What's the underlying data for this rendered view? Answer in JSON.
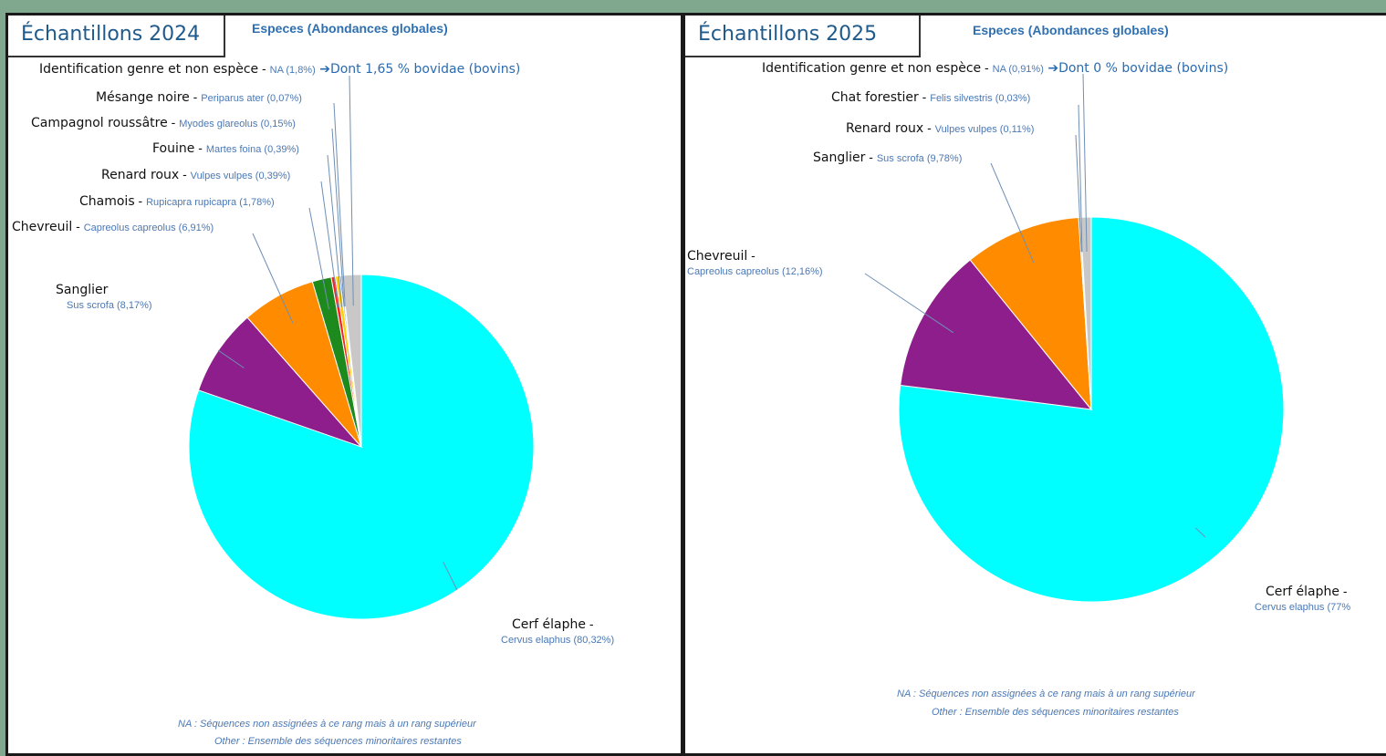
{
  "chart_data": [
    {
      "type": "pie",
      "panel": "Échantillons 2024",
      "title": "Especes (Abondances globales)",
      "slices": [
        {
          "common": "Cerf élaphe",
          "sci": "Cervus elaphus (80,32%)",
          "value": 80.32,
          "color": "#00ffff"
        },
        {
          "common": "Sanglier",
          "sci": "Sus scrofa (8,17%)",
          "value": 8.17,
          "color": "#8e1e8c"
        },
        {
          "common": "Chevreuil",
          "sci": "Capreolus capreolus (6,91%)",
          "value": 6.91,
          "color": "#ff8c00"
        },
        {
          "common": "Chamois",
          "sci": "Rupicapra rupicapra (1,78%)",
          "value": 1.78,
          "color": "#1e8a1e"
        },
        {
          "common": "Renard roux",
          "sci": "Vulpes vulpes (0,39%)",
          "value": 0.39,
          "color": "#ff2020"
        },
        {
          "common": "Fouine",
          "sci": "Martes foina (0,39%)",
          "value": 0.39,
          "color": "#ffd000"
        },
        {
          "common": "Campagnol roussâtre",
          "sci": "Myodes glareolus (0,15%)",
          "value": 0.15,
          "color": "#3a7bd5"
        },
        {
          "common": "Mésange noire",
          "sci": "Periparus ater (0,07%)",
          "value": 0.07,
          "color": "#b05ac0"
        },
        {
          "common": "Identification genre et non espèce",
          "sci": "NA (1,8%)",
          "value": 1.8,
          "color": "#c8c8c8"
        }
      ],
      "note": "Dont 1,65 % bovidae (bovins)",
      "footnote_1": "NA : Séquences non assignées à ce rang mais à un rang supérieur",
      "footnote_2": "Other : Ensemble des séquences minoritaires restantes"
    },
    {
      "type": "pie",
      "panel": "Échantillons 2025",
      "title": "Especes (Abondances globales)",
      "slices": [
        {
          "common": "Cerf élaphe",
          "sci": "Cervus elaphus (77%",
          "value": 77.0,
          "color": "#00ffff"
        },
        {
          "common": "Chevreuil",
          "sci": "Capreolus capreolus (12,16%)",
          "value": 12.16,
          "color": "#8e1e8c"
        },
        {
          "common": "Sanglier",
          "sci": "Sus scrofa (9,78%)",
          "value": 9.78,
          "color": "#ff8c00"
        },
        {
          "common": "Renard roux",
          "sci": "Vulpes vulpes (0,11%)",
          "value": 0.11,
          "color": "#1e8a1e"
        },
        {
          "common": "Chat forestier",
          "sci": "Felis silvestris (0,03%)",
          "value": 0.03,
          "color": "#3a7bd5"
        },
        {
          "common": "Identification genre et non espèce",
          "sci": "NA (0,91%)",
          "value": 0.91,
          "color": "#c8c8c8"
        }
      ],
      "note": "Dont 0 % bovidae (bovins)",
      "footnote_1": "NA : Séquences non assignées à ce rang mais à un rang supérieur",
      "footnote_2": "Other : Ensemble des séquences minoritaires restantes"
    }
  ]
}
